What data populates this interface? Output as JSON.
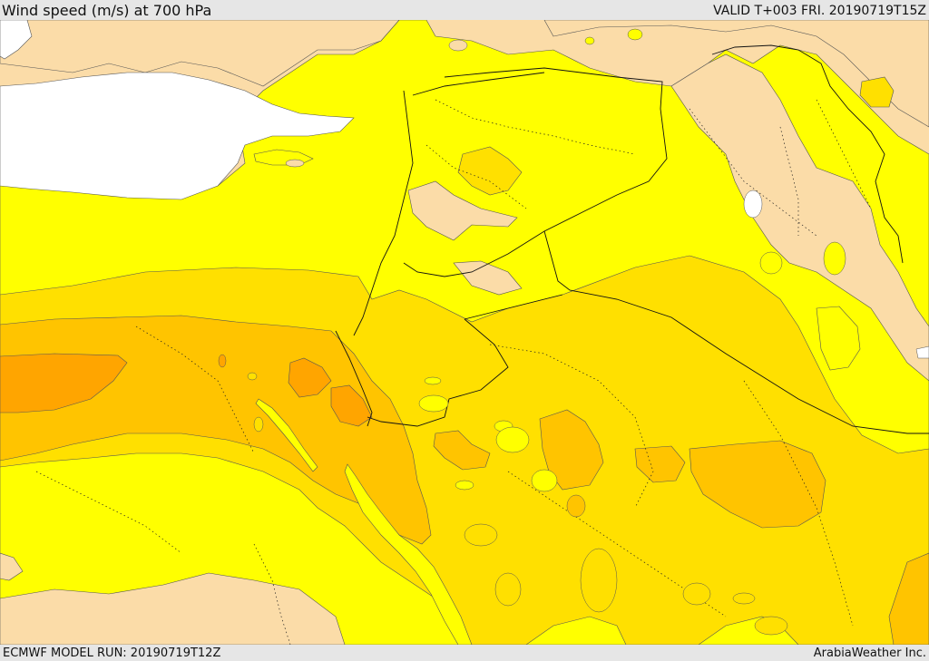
{
  "header": {
    "title": "Wind speed (m/s) at 700 hPa",
    "valid": "VALID T+003 FRI. 20190719T15Z"
  },
  "footer": {
    "model_run": "ECMWF MODEL RUN: 20190719T12Z",
    "brand": "ArabiaWeather Inc."
  },
  "colors": {
    "land_light": "#fbdca8",
    "band_1": "#ffff00",
    "band_2": "#ffe000",
    "band_3": "#ffc400",
    "band_4": "#ffa500",
    "band_5": "#ff8c00",
    "sea": "#ffffff",
    "frame": "#e6e6e6"
  }
}
